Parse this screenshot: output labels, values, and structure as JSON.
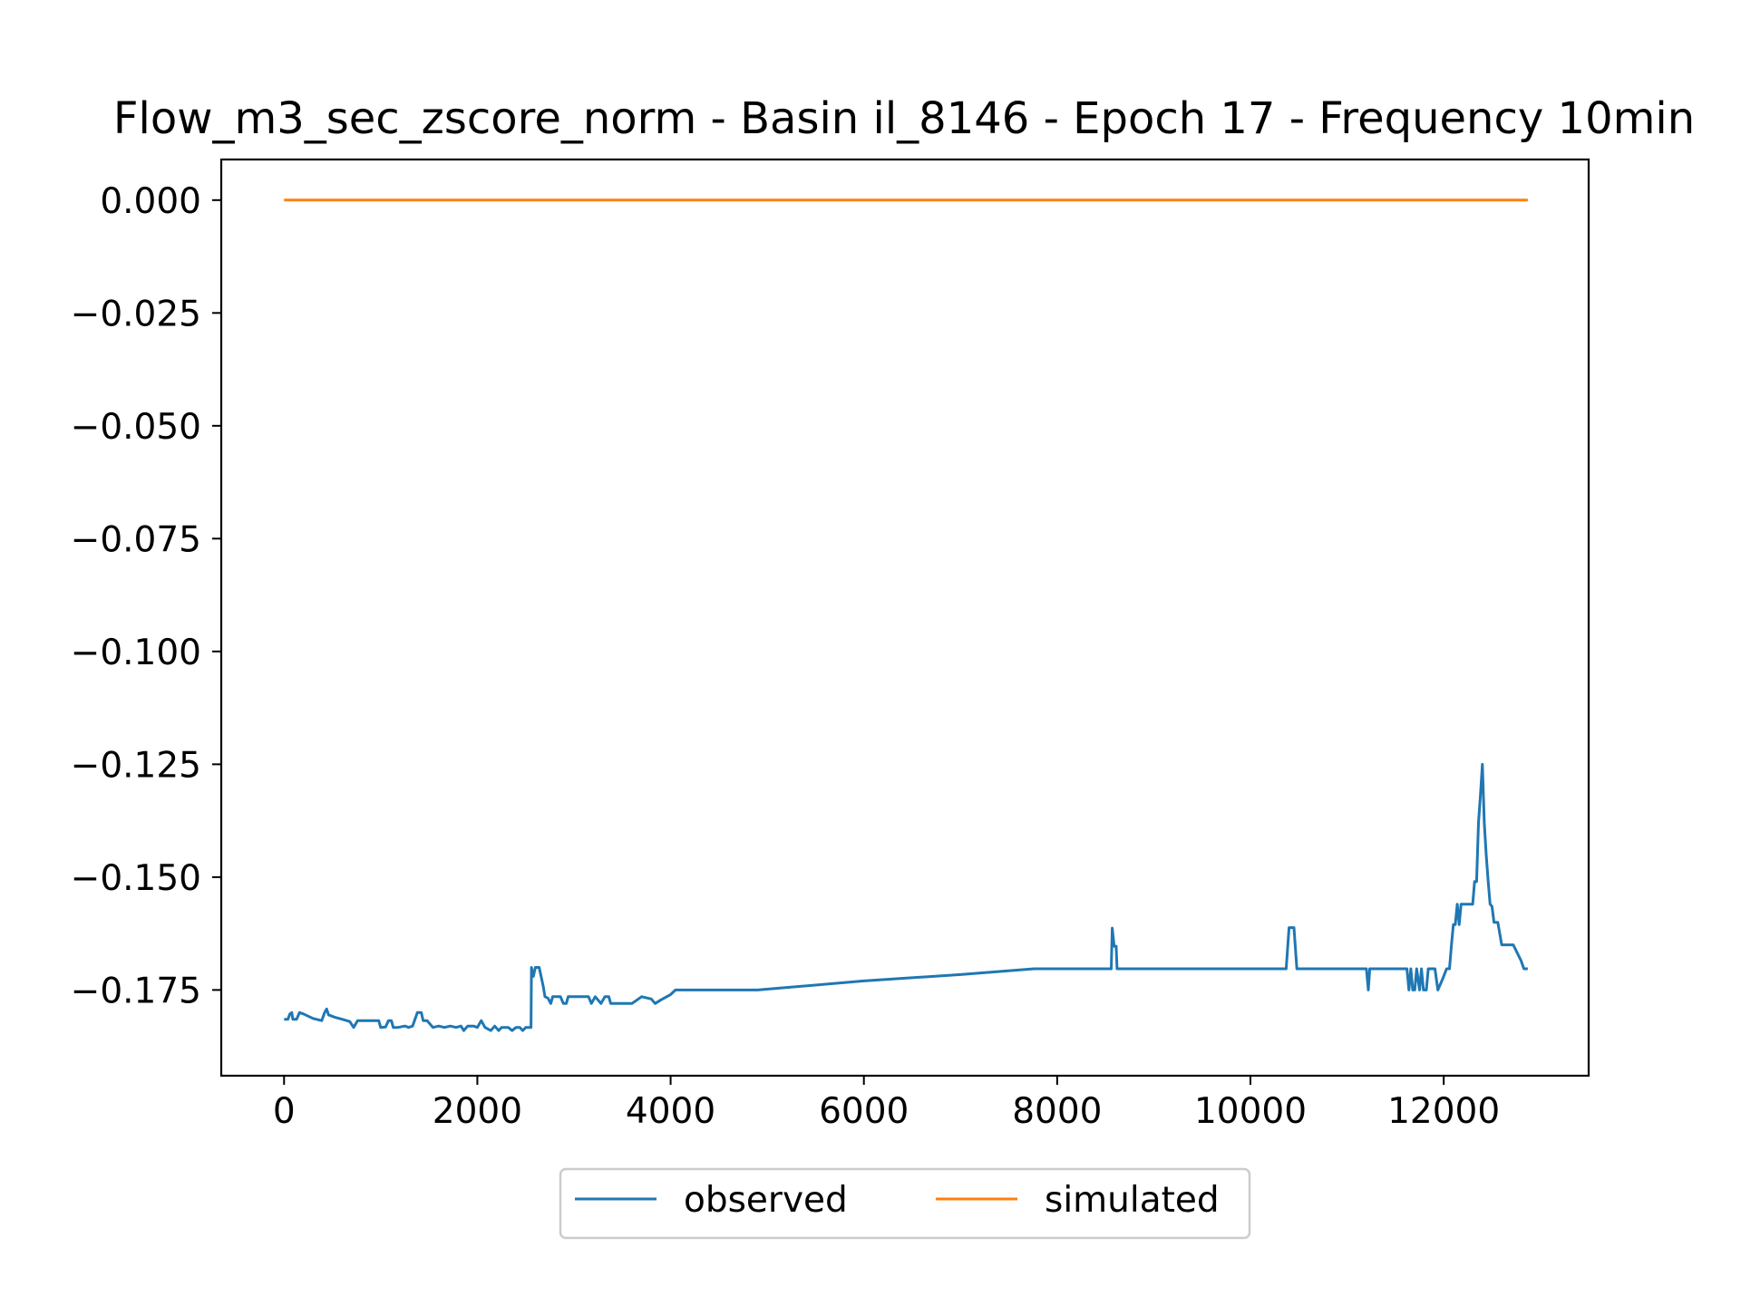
{
  "chart_data": {
    "type": "line",
    "title": "Flow_m3_sec_zscore_norm - Basin il_8146 - Epoch 17 - Frequency 10min",
    "xlabel": "",
    "ylabel": "",
    "xlim": [
      -650,
      13500
    ],
    "ylim": [
      -0.194,
      0.009
    ],
    "xticks": [
      0,
      2000,
      4000,
      6000,
      8000,
      10000,
      12000
    ],
    "xtick_labels": [
      "0",
      "2000",
      "4000",
      "6000",
      "8000",
      "10000",
      "12000"
    ],
    "yticks": [
      0.0,
      -0.025,
      -0.05,
      -0.075,
      -0.1,
      -0.125,
      -0.15,
      -0.175
    ],
    "ytick_labels": [
      "0.000",
      "−0.025",
      "−0.050",
      "−0.075",
      "−0.100",
      "−0.125",
      "−0.150",
      "−0.175"
    ],
    "grid": false,
    "legend_position": "bottom-center",
    "series": [
      {
        "name": "observed",
        "color": "#1f77b4",
        "points": [
          [
            0,
            -0.1815
          ],
          [
            40,
            -0.1815
          ],
          [
            60,
            -0.1803
          ],
          [
            80,
            -0.18
          ],
          [
            90,
            -0.1815
          ],
          [
            130,
            -0.1815
          ],
          [
            160,
            -0.18
          ],
          [
            200,
            -0.1803
          ],
          [
            250,
            -0.1808
          ],
          [
            300,
            -0.1813
          ],
          [
            390,
            -0.1818
          ],
          [
            420,
            -0.18
          ],
          [
            440,
            -0.1792
          ],
          [
            460,
            -0.1805
          ],
          [
            520,
            -0.181
          ],
          [
            600,
            -0.1815
          ],
          [
            680,
            -0.182
          ],
          [
            720,
            -0.1833
          ],
          [
            760,
            -0.1818
          ],
          [
            900,
            -0.1818
          ],
          [
            980,
            -0.1818
          ],
          [
            1000,
            -0.1833
          ],
          [
            1050,
            -0.1832
          ],
          [
            1080,
            -0.1818
          ],
          [
            1110,
            -0.1818
          ],
          [
            1130,
            -0.1833
          ],
          [
            1180,
            -0.1833
          ],
          [
            1250,
            -0.183
          ],
          [
            1290,
            -0.1833
          ],
          [
            1330,
            -0.183
          ],
          [
            1380,
            -0.18
          ],
          [
            1420,
            -0.18
          ],
          [
            1440,
            -0.1818
          ],
          [
            1480,
            -0.1818
          ],
          [
            1540,
            -0.1833
          ],
          [
            1600,
            -0.183
          ],
          [
            1660,
            -0.1833
          ],
          [
            1720,
            -0.183
          ],
          [
            1780,
            -0.1833
          ],
          [
            1830,
            -0.183
          ],
          [
            1860,
            -0.184
          ],
          [
            1900,
            -0.183
          ],
          [
            1960,
            -0.183
          ],
          [
            2000,
            -0.1833
          ],
          [
            2040,
            -0.1818
          ],
          [
            2080,
            -0.1833
          ],
          [
            2140,
            -0.184
          ],
          [
            2180,
            -0.183
          ],
          [
            2220,
            -0.184
          ],
          [
            2250,
            -0.1833
          ],
          [
            2320,
            -0.1833
          ],
          [
            2360,
            -0.184
          ],
          [
            2400,
            -0.1833
          ],
          [
            2440,
            -0.1833
          ],
          [
            2470,
            -0.184
          ],
          [
            2500,
            -0.1833
          ],
          [
            2540,
            -0.1833
          ],
          [
            2555,
            -0.1833
          ],
          [
            2560,
            -0.17
          ],
          [
            2580,
            -0.172
          ],
          [
            2600,
            -0.17
          ],
          [
            2640,
            -0.17
          ],
          [
            2680,
            -0.174
          ],
          [
            2700,
            -0.1765
          ],
          [
            2730,
            -0.1768
          ],
          [
            2760,
            -0.178
          ],
          [
            2780,
            -0.1765
          ],
          [
            2860,
            -0.1765
          ],
          [
            2890,
            -0.178
          ],
          [
            2920,
            -0.178
          ],
          [
            2940,
            -0.1765
          ],
          [
            3150,
            -0.1765
          ],
          [
            3180,
            -0.178
          ],
          [
            3220,
            -0.1765
          ],
          [
            3280,
            -0.178
          ],
          [
            3320,
            -0.1765
          ],
          [
            3360,
            -0.1765
          ],
          [
            3380,
            -0.178
          ],
          [
            3420,
            -0.178
          ],
          [
            3500,
            -0.178
          ],
          [
            3550,
            -0.178
          ],
          [
            3600,
            -0.178
          ],
          [
            3700,
            -0.1765
          ],
          [
            3800,
            -0.177
          ],
          [
            3840,
            -0.178
          ],
          [
            3900,
            -0.1772
          ],
          [
            4000,
            -0.176
          ],
          [
            4050,
            -0.175
          ],
          [
            4200,
            -0.175
          ],
          [
            4400,
            -0.175
          ],
          [
            4600,
            -0.175
          ],
          [
            4900,
            -0.175
          ],
          [
            6000,
            -0.173
          ],
          [
            7000,
            -0.1716
          ],
          [
            7760,
            -0.1703
          ],
          [
            8200,
            -0.1703
          ],
          [
            8560,
            -0.1703
          ],
          [
            8570,
            -0.1613
          ],
          [
            8590,
            -0.1653
          ],
          [
            8610,
            -0.1653
          ],
          [
            8620,
            -0.1703
          ],
          [
            9000,
            -0.1703
          ],
          [
            10000,
            -0.1703
          ],
          [
            10370,
            -0.1703
          ],
          [
            10400,
            -0.1612
          ],
          [
            10450,
            -0.1612
          ],
          [
            10480,
            -0.1703
          ],
          [
            11000,
            -0.1703
          ],
          [
            11200,
            -0.1703
          ],
          [
            11220,
            -0.175
          ],
          [
            11235,
            -0.1703
          ],
          [
            11620,
            -0.1703
          ],
          [
            11640,
            -0.175
          ],
          [
            11660,
            -0.1703
          ],
          [
            11680,
            -0.175
          ],
          [
            11700,
            -0.175
          ],
          [
            11720,
            -0.1703
          ],
          [
            11750,
            -0.175
          ],
          [
            11770,
            -0.1703
          ],
          [
            11790,
            -0.175
          ],
          [
            11820,
            -0.175
          ],
          [
            11840,
            -0.1703
          ],
          [
            11910,
            -0.1703
          ],
          [
            11940,
            -0.175
          ],
          [
            11990,
            -0.1725
          ],
          [
            12030,
            -0.1703
          ],
          [
            12060,
            -0.1703
          ],
          [
            12080,
            -0.165
          ],
          [
            12100,
            -0.1605
          ],
          [
            12120,
            -0.1605
          ],
          [
            12140,
            -0.156
          ],
          [
            12160,
            -0.1605
          ],
          [
            12180,
            -0.156
          ],
          [
            12300,
            -0.156
          ],
          [
            12320,
            -0.151
          ],
          [
            12340,
            -0.151
          ],
          [
            12360,
            -0.138
          ],
          [
            12380,
            -0.132
          ],
          [
            12400,
            -0.125
          ],
          [
            12420,
            -0.138
          ],
          [
            12440,
            -0.145
          ],
          [
            12460,
            -0.151
          ],
          [
            12480,
            -0.156
          ],
          [
            12500,
            -0.1565
          ],
          [
            12520,
            -0.16
          ],
          [
            12560,
            -0.16
          ],
          [
            12600,
            -0.165
          ],
          [
            12680,
            -0.165
          ],
          [
            12720,
            -0.165
          ],
          [
            12800,
            -0.1685
          ],
          [
            12830,
            -0.1703
          ],
          [
            12870,
            -0.1703
          ]
        ]
      },
      {
        "name": "simulated",
        "color": "#ff7f0e",
        "points": [
          [
            0,
            0.0
          ],
          [
            12870,
            0.0
          ]
        ]
      }
    ]
  }
}
